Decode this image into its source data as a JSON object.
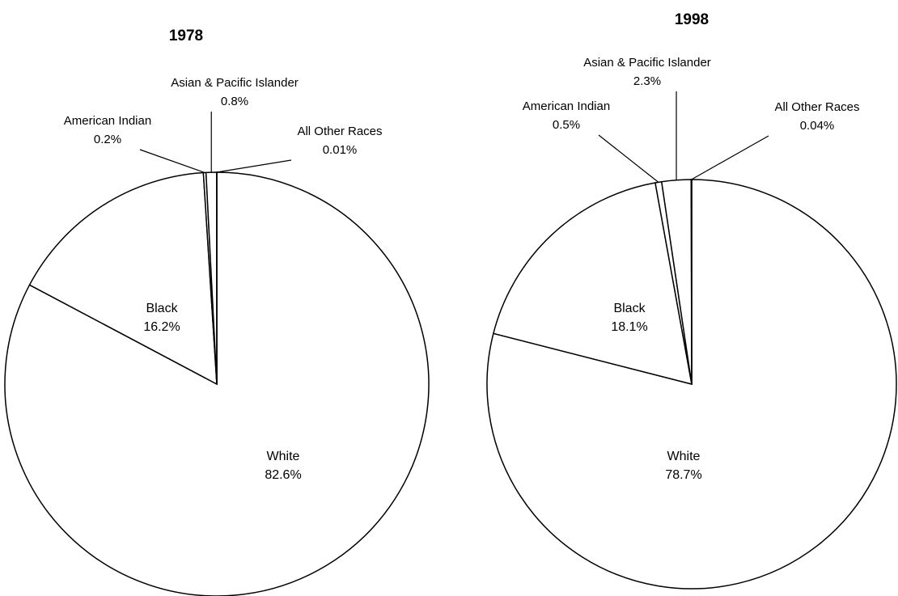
{
  "chart_data": [
    {
      "type": "pie",
      "title": "1978",
      "categories": [
        "White",
        "Black",
        "American Indian",
        "Asian & Pacific Islander",
        "All Other Races"
      ],
      "values": [
        82.6,
        16.2,
        0.2,
        0.8,
        0.01
      ],
      "value_labels": [
        "82.6%",
        "16.2%",
        "0.2%",
        "0.8%",
        "0.01%"
      ],
      "color": "#ffffff"
    },
    {
      "type": "pie",
      "title": "1998",
      "categories": [
        "White",
        "Black",
        "American Indian",
        "Asian & Pacific Islander",
        "All Other Races"
      ],
      "values": [
        78.7,
        18.1,
        0.5,
        2.3,
        0.04
      ],
      "value_labels": [
        "78.7%",
        "18.1%",
        "0.5%",
        "2.3%",
        "0.04%"
      ],
      "color": "#ffffff"
    }
  ]
}
